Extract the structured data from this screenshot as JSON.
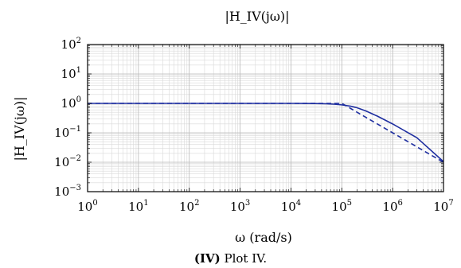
{
  "chart_data": {
    "type": "line",
    "title": "|H_IV(jω)|",
    "xlabel": "ω (rad/s)",
    "ylabel": "|H_IV(jω)|",
    "xscale": "log",
    "yscale": "log",
    "xlim": [
      1,
      10000000
    ],
    "ylim": [
      0.001,
      100
    ],
    "x_ticks": [
      {
        "base": "10",
        "exp": "0"
      },
      {
        "base": "10",
        "exp": "1"
      },
      {
        "base": "10",
        "exp": "2"
      },
      {
        "base": "10",
        "exp": "3"
      },
      {
        "base": "10",
        "exp": "4"
      },
      {
        "base": "10",
        "exp": "5"
      },
      {
        "base": "10",
        "exp": "6"
      },
      {
        "base": "10",
        "exp": "7"
      }
    ],
    "y_ticks": [
      {
        "base": "10",
        "exp": "2"
      },
      {
        "base": "10",
        "exp": "1"
      },
      {
        "base": "10",
        "exp": "0"
      },
      {
        "base": "10",
        "exp": "−1"
      },
      {
        "base": "10",
        "exp": "−2"
      },
      {
        "base": "10",
        "exp": "−3"
      }
    ],
    "grid": true,
    "series": [
      {
        "style": "solid",
        "color": "#1f2fa0",
        "x": [
          1,
          10,
          100,
          1000,
          10000,
          30000,
          50000,
          70000,
          100000,
          150000,
          200000,
          300000,
          500000,
          1000000,
          3000000,
          10000000
        ],
        "y": [
          1,
          1,
          1,
          1,
          1,
          0.99,
          0.97,
          0.94,
          0.89,
          0.8,
          0.71,
          0.55,
          0.37,
          0.2,
          0.068,
          0.0105
        ]
      },
      {
        "style": "dashed",
        "color": "#1f2fa0",
        "x": [
          1,
          10,
          100,
          1000,
          10000,
          100000,
          1000000,
          10000000
        ],
        "y": [
          1,
          1,
          1,
          1,
          1,
          1,
          0.1,
          0.01
        ]
      }
    ]
  },
  "caption": {
    "label": "(IV)",
    "text": "Plot IV."
  }
}
